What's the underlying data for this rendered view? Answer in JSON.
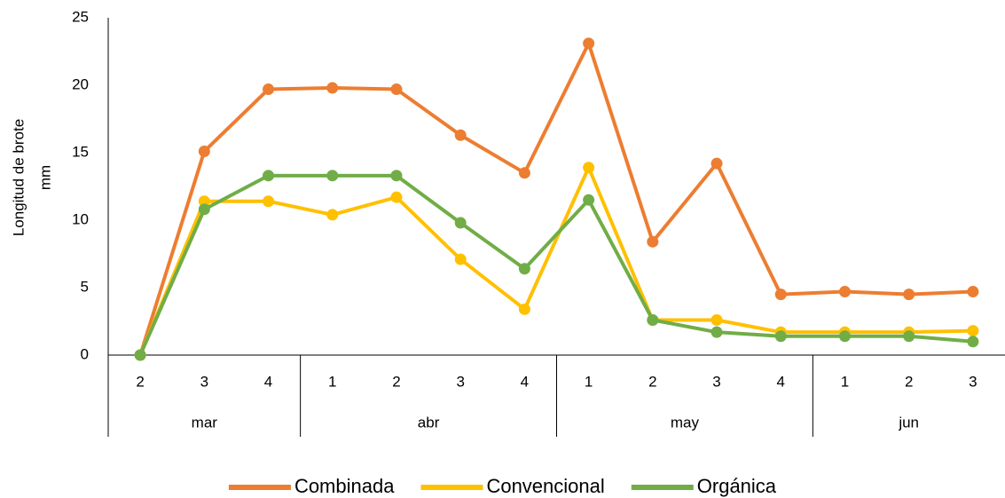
{
  "chart_data": {
    "type": "line",
    "ylabel": [
      "Longitud de brote",
      "mm"
    ],
    "category_groups": [
      {
        "name": "mar",
        "categories": [
          "2",
          "3",
          "4"
        ]
      },
      {
        "name": "abr",
        "categories": [
          "1",
          "2",
          "3",
          "4"
        ]
      },
      {
        "name": "may",
        "categories": [
          "1",
          "2",
          "3",
          "4"
        ]
      },
      {
        "name": "jun",
        "categories": [
          "1",
          "2",
          "3"
        ]
      }
    ],
    "series": [
      {
        "name": "Combinada",
        "color": "#ED7D31",
        "values": [
          0,
          15.1,
          19.7,
          19.8,
          19.7,
          16.3,
          13.5,
          23.1,
          8.4,
          14.2,
          4.5,
          4.7,
          4.5,
          4.7
        ]
      },
      {
        "name": "Convencional",
        "color": "#FFC000",
        "values": [
          0,
          11.4,
          11.4,
          10.4,
          11.7,
          7.1,
          3.4,
          13.9,
          2.6,
          2.6,
          1.7,
          1.7,
          1.7,
          1.8
        ]
      },
      {
        "name": "Orgánica",
        "color": "#70AD47",
        "values": [
          0,
          10.8,
          13.3,
          13.3,
          13.3,
          9.8,
          6.4,
          11.5,
          2.6,
          1.7,
          1.4,
          1.4,
          1.4,
          1.0
        ]
      }
    ],
    "ylim": [
      0,
      25
    ],
    "yticks": [
      0,
      5,
      10,
      15,
      20,
      25
    ],
    "grid": false,
    "legend": "bottom"
  }
}
